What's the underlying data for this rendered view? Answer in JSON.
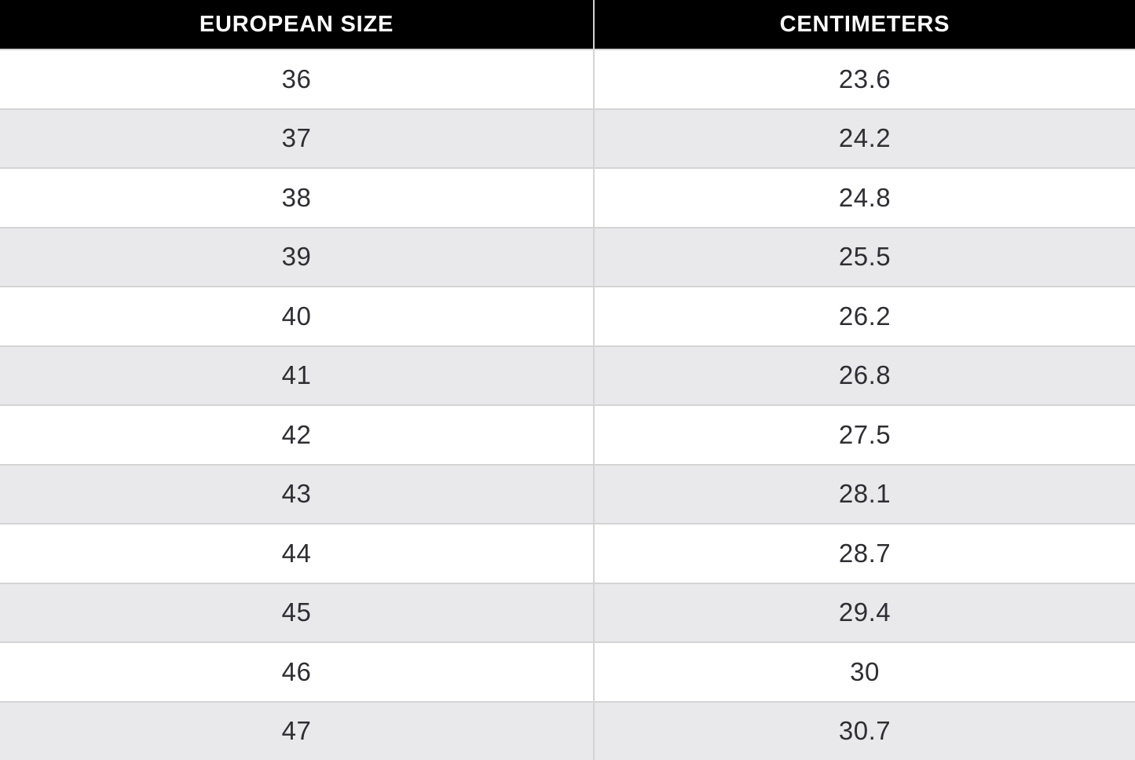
{
  "table": {
    "columns": [
      "EUROPEAN SIZE",
      "CENTIMETERS"
    ],
    "rows": [
      {
        "eu": "36",
        "cm": "23.6"
      },
      {
        "eu": "37",
        "cm": "24.2"
      },
      {
        "eu": "38",
        "cm": "24.8"
      },
      {
        "eu": "39",
        "cm": "25.5"
      },
      {
        "eu": "40",
        "cm": "26.2"
      },
      {
        "eu": "41",
        "cm": "26.8"
      },
      {
        "eu": "42",
        "cm": "27.5"
      },
      {
        "eu": "43",
        "cm": "28.1"
      },
      {
        "eu": "44",
        "cm": "28.7"
      },
      {
        "eu": "45",
        "cm": "29.4"
      },
      {
        "eu": "46",
        "cm": "30"
      },
      {
        "eu": "47",
        "cm": "30.7"
      }
    ]
  },
  "colors": {
    "header_bg": "#000000",
    "header_text": "#ffffff",
    "row_bg": "#ffffff",
    "row_alt_bg": "#e9e9eb",
    "grid_border": "#d4d4d4",
    "cell_text": "#2f2e33"
  },
  "chart_data": {
    "type": "table",
    "title": "",
    "columns": [
      "EUROPEAN SIZE",
      "CENTIMETERS"
    ],
    "rows": [
      [
        36,
        23.6
      ],
      [
        37,
        24.2
      ],
      [
        38,
        24.8
      ],
      [
        39,
        25.5
      ],
      [
        40,
        26.2
      ],
      [
        41,
        26.8
      ],
      [
        42,
        27.5
      ],
      [
        43,
        28.1
      ],
      [
        44,
        28.7
      ],
      [
        45,
        29.4
      ],
      [
        46,
        30
      ],
      [
        47,
        30.7
      ]
    ]
  }
}
